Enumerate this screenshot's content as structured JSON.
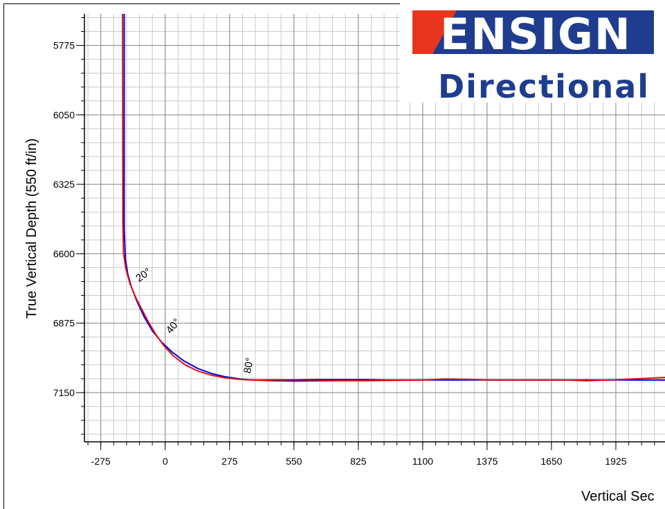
{
  "chart_data": {
    "type": "line",
    "title": "",
    "xlabel": "Vertical Sec",
    "ylabel": "True Vertical Depth (550 ft/in)",
    "xlim": [
      -345,
      2135
    ],
    "ylim": [
      5650,
      7345
    ],
    "y_inverted": true,
    "grid": true,
    "x_ticks": [
      -275,
      0,
      275,
      550,
      825,
      1100,
      1375,
      1650,
      1925
    ],
    "y_ticks": [
      5775,
      6050,
      6325,
      6600,
      6875,
      7150
    ],
    "series": [
      {
        "color": "#0000e0",
        "x": [
          -175,
          -175,
          -170,
          -160,
          -145,
          -120,
          -90,
          -55,
          -15,
          30,
          80,
          140,
          200,
          260,
          320,
          370,
          450,
          550,
          650,
          750,
          850,
          950,
          1100,
          1200,
          1300,
          1400,
          1500,
          1600,
          1700,
          1800,
          1900,
          2000,
          2135
        ],
        "y": [
          5650,
          6500,
          6620,
          6680,
          6730,
          6790,
          6850,
          6905,
          6950,
          6990,
          7025,
          7055,
          7075,
          7088,
          7096,
          7100,
          7100,
          7100,
          7099,
          7099,
          7099,
          7100,
          7100,
          7100,
          7100,
          7100,
          7100,
          7100,
          7100,
          7100,
          7100,
          7100,
          7100
        ]
      },
      {
        "color": "#e01010",
        "x": [
          -182,
          -181,
          -178,
          -168,
          -150,
          -125,
          -100,
          -72,
          -40,
          -5,
          35,
          85,
          140,
          200,
          260,
          320,
          370,
          450,
          550,
          650,
          750,
          850,
          950,
          1100,
          1200,
          1300,
          1400,
          1500,
          1600,
          1700,
          1800,
          1900,
          2000,
          2135
        ],
        "y": [
          5650,
          6480,
          6600,
          6660,
          6720,
          6775,
          6820,
          6870,
          6920,
          6965,
          7005,
          7040,
          7065,
          7082,
          7092,
          7098,
          7100,
          7103,
          7105,
          7104,
          7103,
          7103,
          7102,
          7100,
          7096,
          7098,
          7100,
          7100,
          7100,
          7100,
          7103,
          7100,
          7096,
          7090
        ]
      }
    ],
    "annotations": [
      {
        "text": "20°",
        "x": -85,
        "y": 6695,
        "angle": -35
      },
      {
        "text": "40°",
        "x": 45,
        "y": 6895,
        "angle": -50
      },
      {
        "text": "80°",
        "x": 370,
        "y": 7045,
        "angle": -80
      }
    ]
  },
  "logo": {
    "line1": "ENSIGN",
    "line2": "Directional",
    "red": "#e8351e",
    "blue": "#1f3c8f"
  }
}
